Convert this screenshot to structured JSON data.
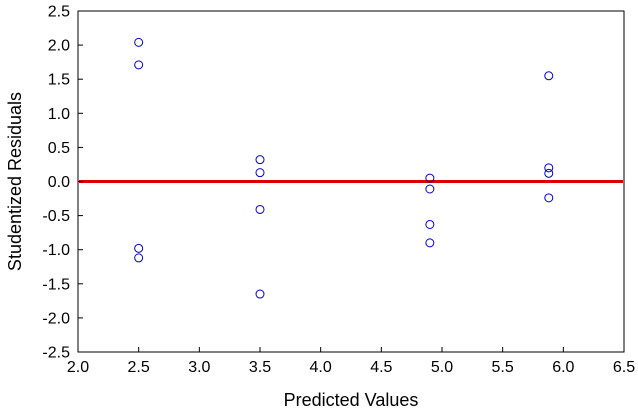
{
  "chart_data": {
    "type": "scatter",
    "xlabel": "Predicted Values",
    "ylabel": "Studentized Residuals",
    "xlim": [
      2.0,
      6.5
    ],
    "ylim": [
      -2.5,
      2.5
    ],
    "xticks": [
      "2.0",
      "2.5",
      "3.0",
      "3.5",
      "4.0",
      "4.5",
      "5.0",
      "5.5",
      "6.0",
      "6.5"
    ],
    "yticks": [
      "2.5",
      "2.0",
      "1.5",
      "1.0",
      "0.5",
      "0.0",
      "-0.5",
      "-1.0",
      "-1.5",
      "-2.0",
      "-2.5"
    ],
    "grid": false,
    "reference_line": {
      "y": 0.0,
      "color": "#dd0000"
    },
    "point_color": "#0000cc",
    "points": [
      {
        "x": 2.5,
        "y": 2.04
      },
      {
        "x": 2.5,
        "y": 1.71
      },
      {
        "x": 2.5,
        "y": -0.98
      },
      {
        "x": 2.5,
        "y": -1.12
      },
      {
        "x": 3.5,
        "y": 0.32
      },
      {
        "x": 3.5,
        "y": 0.13
      },
      {
        "x": 3.5,
        "y": -0.41
      },
      {
        "x": 3.5,
        "y": -1.65
      },
      {
        "x": 4.9,
        "y": 0.05
      },
      {
        "x": 4.9,
        "y": -0.11
      },
      {
        "x": 4.9,
        "y": -0.63
      },
      {
        "x": 4.9,
        "y": -0.9
      },
      {
        "x": 5.88,
        "y": 1.55
      },
      {
        "x": 5.88,
        "y": 0.2
      },
      {
        "x": 5.88,
        "y": 0.12
      },
      {
        "x": 5.88,
        "y": -0.24
      }
    ]
  }
}
